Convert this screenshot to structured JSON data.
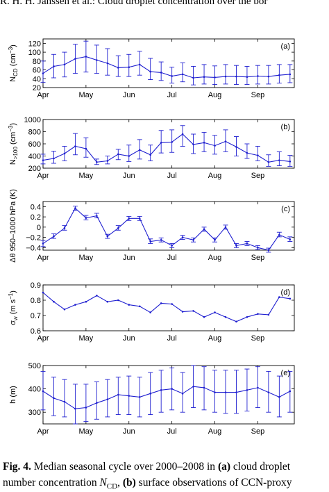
{
  "header": "R. H. H. Janssen et al.: Cloud droplet concentration over the bor",
  "caption": {
    "label": "Fig. 4.",
    "line1_text": " Median seasonal cycle over 2000–2008 in ",
    "line1_a": "(a)",
    "line1_tail": " cloud droplet",
    "line2_text": "number concentration ",
    "line2_sym": "N",
    "line2_sub": "CD",
    "line2_comma": ", ",
    "line2_b": "(b)",
    "line2_tail": " surface observations of CCN-proxy"
  },
  "colors": {
    "series": "#1f1fd0",
    "axis": "#000000"
  },
  "chart_data": [
    {
      "type": "line",
      "panel_label": "(a)",
      "ylabel": "N_CD (cm^-3)",
      "ylabel_main": "N",
      "ylabel_sub": "CD",
      "ylabel_unit": "(cm",
      "ylabel_exp": "−3",
      "ylabel_close": ")",
      "ylim": [
        20,
        130
      ],
      "yticks": [
        20,
        40,
        60,
        80,
        100,
        120
      ],
      "xtick_labels": [
        "Apr",
        "May",
        "Jun",
        "Jul",
        "Aug",
        "Sep"
      ],
      "x": [
        0,
        0.25,
        0.5,
        0.75,
        1,
        1.25,
        1.5,
        1.75,
        2,
        2.25,
        2.5,
        2.75,
        3,
        3.25,
        3.5,
        3.75,
        4,
        4.25,
        4.5,
        4.75,
        5,
        5.25,
        5.5,
        5.75
      ],
      "values": [
        52,
        68,
        72,
        85,
        90,
        82,
        75,
        65,
        66,
        72,
        56,
        54,
        46,
        50,
        42,
        44,
        43,
        45,
        45,
        44,
        46,
        45,
        48,
        50
      ],
      "lower": [
        32,
        42,
        44,
        52,
        55,
        52,
        48,
        45,
        45,
        48,
        38,
        36,
        30,
        33,
        26,
        28,
        27,
        28,
        27,
        27,
        28,
        28,
        30,
        31
      ],
      "upper": [
        80,
        95,
        100,
        118,
        125,
        116,
        108,
        92,
        95,
        102,
        86,
        78,
        66,
        76,
        68,
        72,
        69,
        72,
        70,
        68,
        70,
        70,
        72,
        72
      ]
    },
    {
      "type": "line",
      "panel_label": "(b)",
      "ylabel": "N_>100 (cm^-3)",
      "ylabel_main": "N",
      "ylabel_sub": ">100",
      "ylabel_unit": "(cm",
      "ylabel_exp": "−3",
      "ylabel_close": ")",
      "ylim": [
        200,
        1000
      ],
      "yticks": [
        200,
        400,
        600,
        800,
        1000
      ],
      "xtick_labels": [
        "Apr",
        "May",
        "Jun",
        "Jul",
        "Aug",
        "Sep"
      ],
      "x": [
        0,
        0.25,
        0.5,
        0.75,
        1,
        1.25,
        1.5,
        1.75,
        2,
        2.25,
        2.5,
        2.75,
        3,
        3.25,
        3.5,
        3.75,
        4,
        4.25,
        4.5,
        4.75,
        5,
        5.25,
        5.5,
        5.75
      ],
      "values": [
        330,
        360,
        440,
        560,
        520,
        300,
        320,
        430,
        400,
        500,
        420,
        620,
        630,
        760,
        590,
        620,
        570,
        640,
        550,
        450,
        410,
        300,
        330,
        310
      ],
      "lower": [
        270,
        280,
        320,
        420,
        380,
        260,
        270,
        340,
        310,
        350,
        320,
        450,
        460,
        560,
        440,
        470,
        430,
        470,
        400,
        360,
        320,
        230,
        240,
        230
      ],
      "upper": [
        430,
        480,
        560,
        770,
        700,
        350,
        400,
        510,
        580,
        670,
        580,
        820,
        830,
        900,
        760,
        790,
        740,
        830,
        720,
        600,
        560,
        420,
        470,
        410
      ]
    },
    {
      "type": "line",
      "panel_label": "(c)",
      "ylabel": "Δθ 950–1000 hPa (K)",
      "ylim": [
        -0.45,
        0.5
      ],
      "yticks": [
        -0.4,
        -0.2,
        0,
        0.2,
        0.4
      ],
      "ytick_labels": [
        "−0.4",
        "−0.2",
        "0",
        "0.2",
        "0.4"
      ],
      "xtick_labels": [
        "Apr",
        "May",
        "Jun",
        "Jul",
        "Aug",
        "Sep"
      ],
      "x": [
        0,
        0.25,
        0.5,
        0.75,
        1,
        1.25,
        1.5,
        1.75,
        2,
        2.25,
        2.5,
        2.75,
        3,
        3.25,
        3.5,
        3.75,
        4,
        4.25,
        4.5,
        4.75,
        5,
        5.25,
        5.5,
        5.75
      ],
      "values": [
        -0.32,
        -0.18,
        -0.02,
        0.37,
        0.18,
        0.22,
        -0.18,
        -0.02,
        0.17,
        0.17,
        -0.28,
        -0.25,
        -0.36,
        -0.2,
        -0.25,
        -0.04,
        -0.25,
        0.0,
        -0.36,
        -0.32,
        -0.4,
        -0.45,
        -0.15,
        -0.24
      ],
      "lower": [
        -0.38,
        -0.22,
        -0.06,
        0.33,
        0.14,
        0.18,
        -0.22,
        -0.06,
        0.13,
        0.13,
        -0.32,
        -0.29,
        -0.4,
        -0.24,
        -0.29,
        -0.08,
        -0.29,
        -0.04,
        -0.4,
        -0.36,
        -0.44,
        -0.49,
        -0.19,
        -0.28
      ],
      "upper": [
        -0.26,
        -0.13,
        0.03,
        0.41,
        0.23,
        0.27,
        -0.14,
        0.03,
        0.21,
        0.21,
        -0.23,
        -0.21,
        -0.32,
        -0.16,
        -0.21,
        0.0,
        -0.21,
        0.04,
        -0.32,
        -0.28,
        -0.36,
        -0.41,
        -0.1,
        -0.19
      ]
    },
    {
      "type": "line",
      "panel_label": "(d)",
      "ylabel": "σ_w (m s^-1)",
      "ylabel_main": "σ",
      "ylabel_sub": "w",
      "ylabel_unit": "(m s",
      "ylabel_exp": "−1",
      "ylabel_close": ")",
      "ylim": [
        0.6,
        0.9
      ],
      "yticks": [
        0.6,
        0.7,
        0.8,
        0.9
      ],
      "xtick_labels": [
        "Apr",
        "May",
        "Jun",
        "Jul",
        "Aug",
        "Sep"
      ],
      "x": [
        0,
        0.25,
        0.5,
        0.75,
        1,
        1.25,
        1.5,
        1.75,
        2,
        2.25,
        2.5,
        2.75,
        3,
        3.25,
        3.5,
        3.75,
        4,
        4.25,
        4.5,
        4.75,
        5,
        5.25,
        5.5,
        5.75
      ],
      "values": [
        0.85,
        0.79,
        0.74,
        0.77,
        0.79,
        0.83,
        0.79,
        0.8,
        0.77,
        0.76,
        0.72,
        0.78,
        0.775,
        0.725,
        0.73,
        0.69,
        0.72,
        0.69,
        0.66,
        0.69,
        0.71,
        0.705,
        0.82,
        0.81
      ]
    },
    {
      "type": "line",
      "panel_label": "(e)",
      "ylabel": "h (m)",
      "ylim": [
        250,
        500
      ],
      "yticks": [
        300,
        400,
        500
      ],
      "xtick_labels": [
        "Apr",
        "May",
        "Jun",
        "Jul",
        "Aug",
        "Sep"
      ],
      "x": [
        0,
        0.25,
        0.5,
        0.75,
        1,
        1.25,
        1.5,
        1.75,
        2,
        2.25,
        2.5,
        2.75,
        3,
        3.25,
        3.5,
        3.75,
        4,
        4.25,
        4.5,
        4.75,
        5,
        5.25,
        5.5,
        5.75
      ],
      "values": [
        390,
        360,
        345,
        315,
        320,
        340,
        355,
        375,
        370,
        365,
        380,
        395,
        400,
        380,
        410,
        405,
        385,
        385,
        385,
        395,
        405,
        385,
        365,
        390
      ],
      "lower": [
        310,
        285,
        280,
        250,
        260,
        270,
        280,
        290,
        290,
        280,
        290,
        300,
        310,
        300,
        320,
        310,
        300,
        295,
        295,
        305,
        320,
        300,
        280,
        300
      ],
      "upper": [
        475,
        450,
        440,
        420,
        420,
        430,
        440,
        450,
        455,
        450,
        470,
        480,
        490,
        470,
        500,
        495,
        480,
        480,
        480,
        485,
        495,
        475,
        455,
        475
      ]
    }
  ]
}
